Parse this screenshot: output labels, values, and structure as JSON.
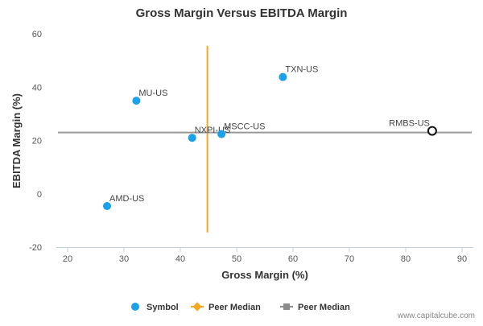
{
  "chart_data": {
    "type": "scatter",
    "title": "Gross Margin Versus EBITDA Margin",
    "xlabel": "Gross Margin (%)",
    "ylabel": "EBITDA Margin (%)",
    "xlim": [
      18,
      92
    ],
    "ylim": [
      -20,
      60
    ],
    "xticks": [
      20,
      30,
      40,
      50,
      60,
      70,
      80,
      90
    ],
    "yticks": [
      -20,
      0,
      20,
      40,
      60
    ],
    "grid": false,
    "points": [
      {
        "label": "TXN-US",
        "x": 58.2,
        "y": 43.8,
        "style": "filled"
      },
      {
        "label": "MU-US",
        "x": 32.2,
        "y": 34.9,
        "style": "filled"
      },
      {
        "label": "NXPI-US",
        "x": 42.1,
        "y": 21.0,
        "style": "filled"
      },
      {
        "label": "MSCC-US",
        "x": 47.3,
        "y": 22.4,
        "style": "filled"
      },
      {
        "label": "AMD-US",
        "x": 27.0,
        "y": -4.6,
        "style": "filled"
      },
      {
        "label": "RMBS-US",
        "x": 84.7,
        "y": 23.6,
        "style": "hollow"
      }
    ],
    "peer_median_x": {
      "value": 44.8,
      "y_range": [
        -14.5,
        55.5
      ]
    },
    "peer_median_y": {
      "value": 23.0
    },
    "legend": {
      "placement": "bottom",
      "entries": [
        {
          "name": "Symbol",
          "marker": "circle",
          "color": "#1aa1e8"
        },
        {
          "name": "Peer Median",
          "marker": "diamond-line",
          "color": "#f5a623"
        },
        {
          "name": "Peer Median",
          "marker": "square-line",
          "color": "#8c8c8c"
        }
      ]
    },
    "colors": {
      "point": "#1aa1e8",
      "hollow_stroke": "#111111",
      "median_x": "#f5a623",
      "median_y": "#999999",
      "axis": "#c0d0e0"
    }
  },
  "watermark": "www.capitalcube.com"
}
